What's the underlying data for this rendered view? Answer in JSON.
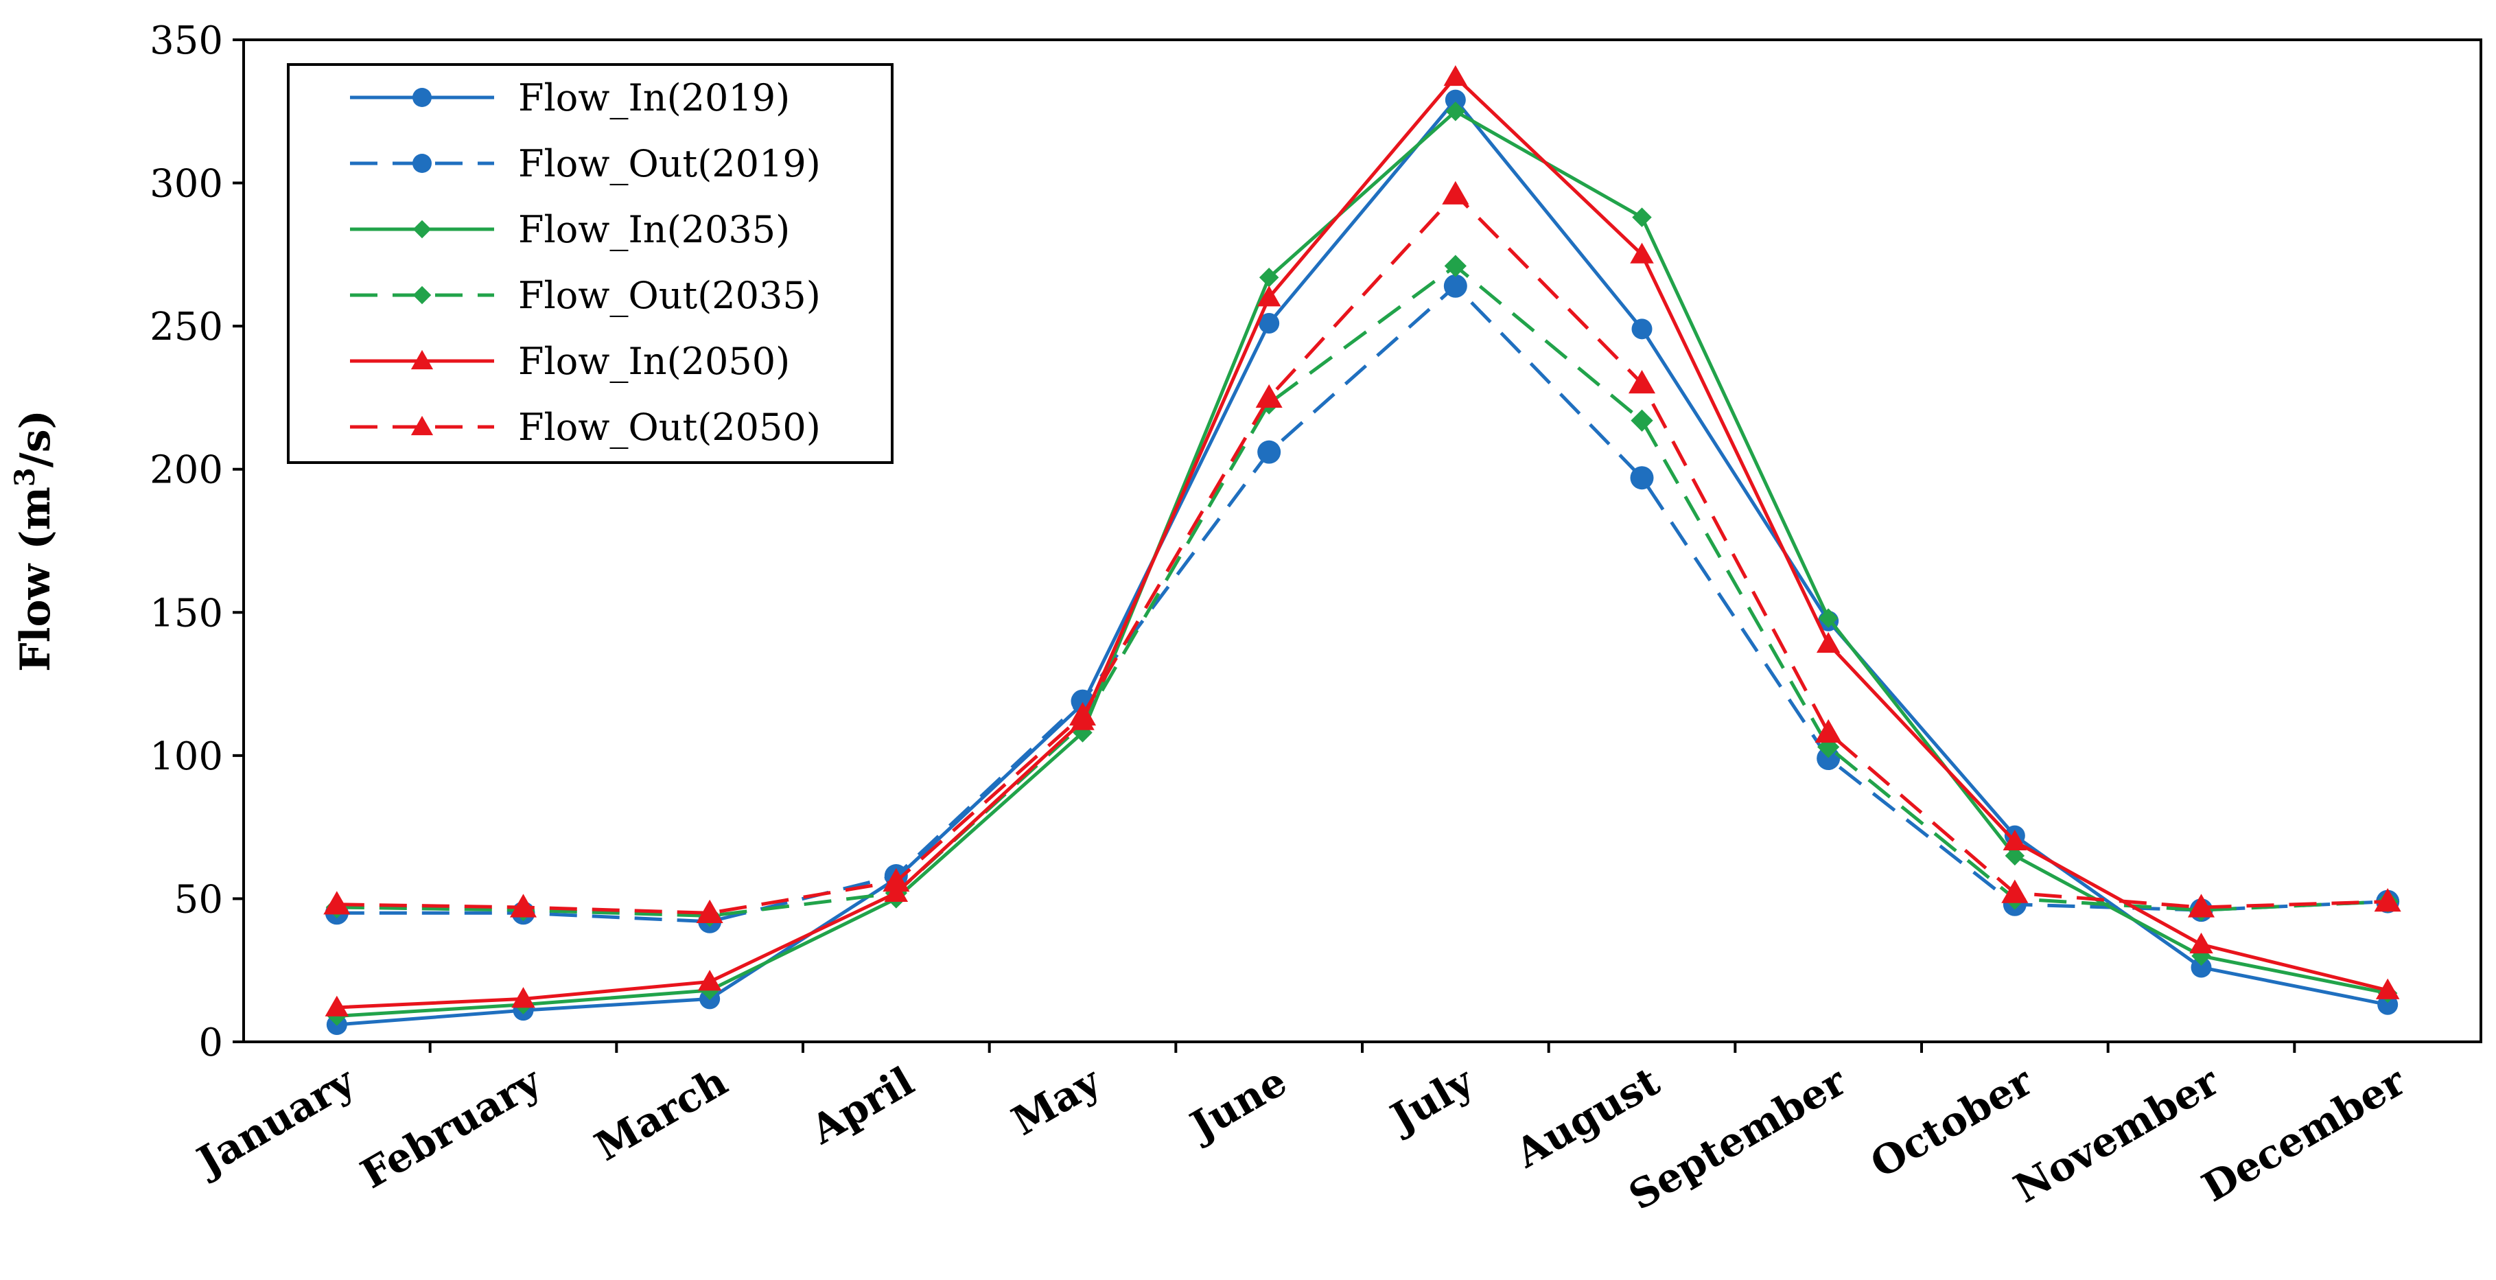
{
  "chart_data": {
    "type": "line",
    "title": "",
    "xlabel": "",
    "ylabel": "Flow (m³/s)",
    "ylabel_parts": {
      "main": "Flow (m",
      "sup": "3",
      "tail": "/s)"
    },
    "ylim": [
      0,
      350
    ],
    "yticks": [
      "0",
      "50",
      "100",
      "150",
      "200",
      "250",
      "300",
      "350"
    ],
    "grid": false,
    "legend_position": "top-left",
    "categories": [
      "January",
      "February",
      "March",
      "April",
      "May",
      "June",
      "July",
      "August",
      "September",
      "October",
      "November",
      "December"
    ],
    "series": [
      {
        "name": "Flow_In(2019)",
        "color": "#1f6fbf",
        "dash": "solid",
        "marker": "circle",
        "values": [
          6,
          11,
          15,
          57,
          118,
          251,
          329,
          249,
          147,
          72,
          26,
          13
        ]
      },
      {
        "name": "Flow_Out(2019)",
        "color": "#1f6fbf",
        "dash": "dashed",
        "marker": "circle",
        "values": [
          45,
          45,
          42,
          58,
          119,
          206,
          264,
          197,
          99,
          48,
          46,
          49
        ]
      },
      {
        "name": "Flow_In(2035)",
        "color": "#21a34a",
        "dash": "solid",
        "marker": "diamond",
        "values": [
          9,
          13,
          18,
          50,
          108,
          267,
          325,
          288,
          148,
          65,
          30,
          17
        ]
      },
      {
        "name": "Flow_Out(2035)",
        "color": "#21a34a",
        "dash": "dashed",
        "marker": "diamond",
        "values": [
          47,
          46,
          44,
          52,
          111,
          223,
          271,
          217,
          103,
          50,
          46,
          49
        ]
      },
      {
        "name": "Flow_In(2050)",
        "color": "#e8141c",
        "dash": "solid",
        "marker": "triangle",
        "values": [
          12,
          15,
          21,
          52,
          112,
          260,
          337,
          275,
          139,
          70,
          34,
          18
        ]
      },
      {
        "name": "Flow_Out(2050)",
        "color": "#e8141c",
        "dash": "dashed",
        "marker": "triangle",
        "values": [
          48,
          47,
          45,
          56,
          114,
          225,
          296,
          230,
          108,
          52,
          47,
          49
        ]
      }
    ]
  }
}
